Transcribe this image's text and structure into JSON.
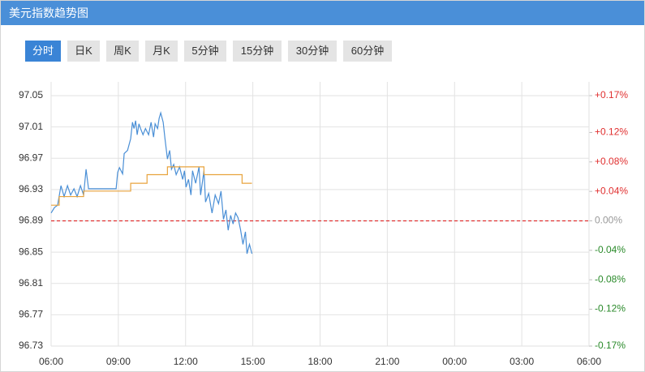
{
  "header": {
    "title": "美元指数趋势图"
  },
  "tabs": [
    "分时",
    "日K",
    "周K",
    "月K",
    "5分钟",
    "15分钟",
    "30分钟",
    "60分钟"
  ],
  "chart_data": {
    "type": "line",
    "xlim": [
      6,
      30
    ],
    "xticks": [
      {
        "value": 6,
        "label": "06:00"
      },
      {
        "value": 9,
        "label": "09:00"
      },
      {
        "value": 12,
        "label": "12:00"
      },
      {
        "value": 15,
        "label": "15:00"
      },
      {
        "value": 18,
        "label": "18:00"
      },
      {
        "value": 21,
        "label": "21:00"
      },
      {
        "value": 24,
        "label": "00:00"
      },
      {
        "value": 27,
        "label": "03:00"
      },
      {
        "value": 30,
        "label": "06:00"
      }
    ],
    "ylim": [
      96.73,
      97.05
    ],
    "yticks": [
      96.73,
      96.77,
      96.81,
      96.85,
      96.89,
      96.93,
      96.97,
      97.01,
      97.05
    ],
    "y2lim": [
      -0.17,
      0.17
    ],
    "y2ticks": [
      {
        "value": -0.17,
        "label": "-0.17%"
      },
      {
        "value": -0.12,
        "label": "-0.12%"
      },
      {
        "value": -0.08,
        "label": "-0.08%"
      },
      {
        "value": -0.04,
        "label": "-0.04%"
      },
      {
        "value": 0,
        "label": "0.00%"
      },
      {
        "value": 0.04,
        "label": "+0.04%"
      },
      {
        "value": 0.08,
        "label": "+0.08%"
      },
      {
        "value": 0.12,
        "label": "+0.12%"
      },
      {
        "value": 0.17,
        "label": "+0.17%"
      }
    ],
    "grid": true,
    "baseline": 96.89,
    "baseline_color": "#e03030",
    "series": [
      {
        "color": "#4a8fd6",
        "x": [
          6.0,
          6.15,
          6.29,
          6.44,
          6.58,
          6.73,
          6.87,
          7.02,
          7.16,
          7.31,
          7.45,
          7.56,
          7.67,
          7.81,
          8.1,
          8.39,
          8.68,
          8.9,
          8.97,
          9.05,
          9.19,
          9.26,
          9.41,
          9.55,
          9.63,
          9.7,
          9.77,
          9.84,
          9.92,
          9.99,
          10.1,
          10.21,
          10.35,
          10.46,
          10.57,
          10.64,
          10.75,
          10.82,
          10.89,
          11.0,
          11.08,
          11.19,
          11.29,
          11.37,
          11.47,
          11.58,
          11.73,
          11.87,
          11.95,
          12.02,
          12.13,
          12.24,
          12.31,
          12.45,
          12.6,
          12.67,
          12.82,
          12.89,
          13.03,
          13.18,
          13.32,
          13.47,
          13.58,
          13.69,
          13.8,
          13.9,
          14.01,
          14.12,
          14.23,
          14.34,
          14.45,
          14.56,
          14.67,
          14.74,
          14.85,
          14.96
        ],
        "values": [
          96.9,
          96.907,
          96.91,
          96.935,
          96.921,
          96.935,
          96.923,
          96.931,
          96.921,
          96.935,
          96.923,
          96.956,
          96.931,
          96.931,
          96.931,
          96.931,
          96.931,
          96.931,
          96.952,
          96.958,
          96.95,
          96.976,
          96.98,
          96.995,
          97.016,
          97.008,
          97.018,
          97.0,
          97.014,
          97.008,
          97.0,
          97.008,
          97.0,
          97.016,
          96.997,
          97.014,
          97.008,
          97.021,
          97.028,
          97.016,
          96.995,
          96.969,
          96.98,
          96.956,
          96.962,
          96.949,
          96.959,
          96.943,
          96.954,
          96.933,
          96.943,
          96.923,
          96.954,
          96.938,
          96.959,
          96.923,
          96.954,
          96.914,
          96.925,
          96.9,
          96.923,
          96.912,
          96.928,
          96.892,
          96.904,
          96.878,
          96.897,
          96.886,
          96.9,
          96.894,
          96.879,
          96.86,
          96.876,
          96.848,
          96.86,
          96.848
        ]
      },
      {
        "color": "#e8a33d",
        "x": [
          6.0,
          6.36,
          6.36,
          7.45,
          7.45,
          9.55,
          9.55,
          10.28,
          10.28,
          11.19,
          11.19,
          12.82,
          12.82,
          14.52,
          14.52,
          14.96
        ],
        "values": [
          96.91,
          96.91,
          96.921,
          96.921,
          96.928,
          96.928,
          96.938,
          96.938,
          96.949,
          96.949,
          96.959,
          96.959,
          96.949,
          96.949,
          96.938,
          96.938
        ]
      }
    ]
  }
}
